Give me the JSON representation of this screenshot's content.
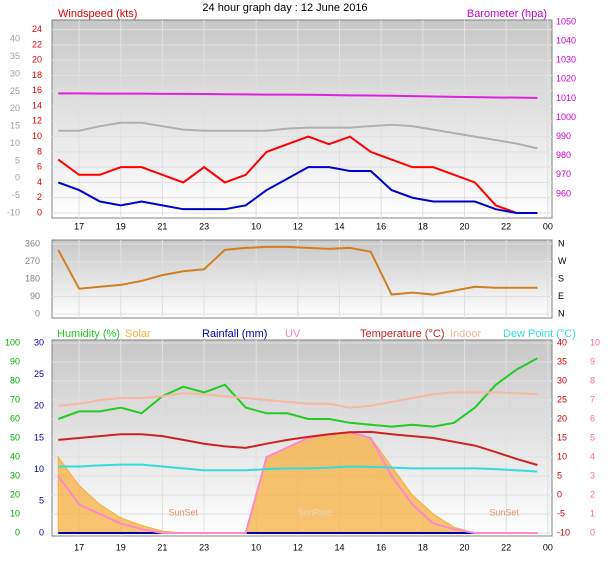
{
  "chart_data": [
    {
      "type": "line",
      "title": "24 hour graph day : 12 June 2016",
      "ylabel": "Windspeed (kts)",
      "y2label": "Barometer (hpa)",
      "x": [
        16,
        17,
        18,
        19,
        20,
        21,
        22,
        23,
        24,
        25,
        26,
        27,
        28,
        29,
        30,
        31,
        32,
        33,
        34,
        35,
        36,
        37,
        38,
        39
      ],
      "xlim": [
        15.7,
        39.7
      ],
      "xticks": [
        17,
        19,
        21,
        23,
        {
          "value": 25.5,
          "label": "10"
        },
        {
          "value": 27.5,
          "label": "12"
        },
        {
          "value": 29.5,
          "label": "14"
        },
        {
          "value": 31.5,
          "label": "16"
        },
        {
          "value": 33.5,
          "label": "18"
        },
        {
          "value": 35.5,
          "label": "20"
        },
        {
          "value": 37.5,
          "label": "22"
        },
        {
          "value": 39.5,
          "label": "00"
        }
      ],
      "ylim": [
        0,
        25
      ],
      "yticks": [
        0,
        2,
        4,
        6,
        8,
        10,
        12,
        14,
        16,
        18,
        20,
        22,
        24
      ],
      "ycolor": "#e00000",
      "y2lim": [
        950,
        1050
      ],
      "y2ticks": [
        960,
        970,
        980,
        990,
        1000,
        1010,
        1020,
        1030,
        1040,
        1050
      ],
      "y2color": "#cc00cc",
      "y3lim": [
        -10,
        45
      ],
      "y3ticks": [
        -10,
        -5,
        0,
        5,
        10,
        15,
        20,
        25,
        30,
        35,
        40
      ],
      "y3color": "#a0a0a0",
      "grid": true,
      "series": [
        {
          "color": "#b0b0b0",
          "axis": "y3",
          "values": [
            13.7,
            13.7,
            15,
            16,
            16,
            15,
            14,
            13.7,
            13.7,
            13.7,
            13.7,
            14.3,
            14.6,
            14.6,
            14.6,
            15,
            15.4,
            15,
            14,
            13,
            12,
            11,
            10,
            8.6
          ]
        },
        {
          "color": "#dd22dd",
          "axis": "y2",
          "values": [
            1012.6,
            1012.6,
            1012.5,
            1012.5,
            1012.5,
            1012.4,
            1012.4,
            1012.3,
            1012.2,
            1012.1,
            1012,
            1012,
            1011.9,
            1011.8,
            1011.6,
            1011.5,
            1011.4,
            1011.2,
            1011,
            1010.8,
            1010.7,
            1010.5,
            1010.4,
            1010.3
          ]
        },
        {
          "color": "#ff0000",
          "axis": "y",
          "values": [
            7,
            5,
            5,
            6,
            6,
            5,
            4,
            6,
            4,
            5,
            8,
            9,
            10,
            9,
            10,
            8,
            7,
            6,
            6,
            5,
            4,
            1,
            0,
            0
          ]
        },
        {
          "color": "#0000cc",
          "axis": "y",
          "values": [
            4,
            3,
            1.5,
            1,
            1.5,
            1,
            0.5,
            0.5,
            0.5,
            1,
            3,
            4.5,
            6,
            6,
            5.5,
            5.5,
            3,
            2,
            1.5,
            1.5,
            1.5,
            0.5,
            0,
            0
          ]
        }
      ]
    },
    {
      "type": "line",
      "x": [
        16,
        17,
        18,
        19,
        20,
        21,
        22,
        23,
        24,
        25,
        26,
        27,
        28,
        29,
        30,
        31,
        32,
        33,
        34,
        35,
        36,
        37,
        38,
        39
      ],
      "xlim": [
        15.7,
        39.7
      ],
      "ylim": [
        0,
        360
      ],
      "yticks": [
        0,
        90,
        180,
        270,
        360
      ],
      "ycolor": "#808080",
      "y2lim": [
        0,
        360
      ],
      "y2ticks": [
        {
          "value": 0,
          "label": "N"
        },
        {
          "value": 90,
          "label": "E"
        },
        {
          "value": 180,
          "label": "S"
        },
        {
          "value": 270,
          "label": "W"
        },
        {
          "value": 360,
          "label": "N"
        }
      ],
      "y2color": "#000000",
      "grid": true,
      "series": [
        {
          "color": "#d08020",
          "axis": "y",
          "values": [
            330,
            130,
            140,
            150,
            170,
            200,
            220,
            230,
            330,
            340,
            345,
            345,
            340,
            335,
            340,
            320,
            100,
            110,
            100,
            120,
            140,
            135,
            135,
            135
          ]
        }
      ]
    },
    {
      "type": "line",
      "x": [
        16,
        17,
        18,
        19,
        20,
        21,
        22,
        23,
        24,
        25,
        26,
        27,
        28,
        29,
        30,
        31,
        32,
        33,
        34,
        35,
        36,
        37,
        38,
        39
      ],
      "xlim": [
        15.7,
        39.7
      ],
      "xticks": [
        17,
        19,
        21,
        23,
        {
          "value": 25.5,
          "label": "10"
        },
        {
          "value": 27.5,
          "label": "12"
        },
        {
          "value": 29.5,
          "label": "14"
        },
        {
          "value": 31.5,
          "label": "16"
        },
        {
          "value": 33.5,
          "label": "18"
        },
        {
          "value": 35.5,
          "label": "20"
        },
        {
          "value": 37.5,
          "label": "22"
        },
        {
          "value": 39.5,
          "label": "00"
        }
      ],
      "ylim": [
        0,
        100
      ],
      "yticks": [
        0,
        10,
        20,
        30,
        40,
        50,
        60,
        70,
        80,
        90,
        100
      ],
      "ycolor": "#00aa00",
      "y2lim": [
        0,
        30
      ],
      "y2ticks": [
        0,
        5,
        10,
        15,
        20,
        25,
        30
      ],
      "y2color": "#0000aa",
      "y3lim": [
        -10,
        40
      ],
      "y3ticks": [
        -10,
        -5,
        0,
        5,
        10,
        15,
        20,
        25,
        30,
        35,
        40
      ],
      "y3color": "#cc0000",
      "y4lim": [
        0,
        10
      ],
      "y4ticks": [
        0,
        1,
        2,
        3,
        4,
        5,
        6,
        7,
        8,
        9,
        10
      ],
      "y4color": "#ff66aa",
      "y5lim": [
        0,
        1000
      ],
      "grid": true,
      "annotations": [
        {
          "text": "SunSet",
          "x": 22
        },
        {
          "text": "SunRise",
          "x": 28.3
        },
        {
          "text": "SunSet",
          "x": 37.4
        }
      ],
      "series": [
        {
          "name": "Solar",
          "color": "#f5b040",
          "axis": "y5",
          "fill": true,
          "values": [
            400,
            250,
            150,
            80,
            40,
            10,
            0,
            0,
            0,
            0,
            400,
            450,
            500,
            520,
            530,
            500,
            350,
            200,
            100,
            30,
            0,
            0,
            0,
            0
          ]
        },
        {
          "name": "Humidity (%)",
          "color": "#22cc22",
          "axis": "y",
          "values": [
            60,
            64,
            64,
            66,
            63,
            72,
            77,
            74,
            78,
            66,
            63,
            63,
            60,
            60,
            58,
            57,
            56,
            57,
            56,
            58,
            66,
            78,
            86,
            92
          ]
        },
        {
          "name": "Rainfall (mm)",
          "color": "#0000aa",
          "axis": "y2",
          "values": [
            0,
            0,
            0,
            0,
            0,
            0,
            0,
            0,
            0,
            0,
            0,
            0,
            0,
            0,
            0,
            0,
            0,
            0,
            0,
            0,
            0,
            0,
            0,
            0
          ]
        },
        {
          "name": "UV",
          "color": "#ff88cc",
          "axis": "y4",
          "values": [
            3,
            1.5,
            1,
            0.5,
            0.2,
            0,
            0,
            0,
            0,
            0,
            4,
            4.5,
            5,
            5.2,
            5.3,
            5,
            3,
            1.5,
            0.5,
            0.2,
            0,
            0,
            0,
            0
          ]
        },
        {
          "name": "Temperature (°C)",
          "color": "#cc2222",
          "axis": "y3",
          "values": [
            14.5,
            15,
            15.5,
            16,
            16,
            15.5,
            14.5,
            13.5,
            12.8,
            12.4,
            13.5,
            14.5,
            15.3,
            16,
            16.5,
            16.6,
            16,
            15.5,
            15,
            14,
            13,
            11.3,
            9.5,
            7.9
          ]
        },
        {
          "name": "Indoor",
          "color": "#f5b8a0",
          "axis": "y3",
          "values": [
            23.5,
            24,
            25,
            25.5,
            25.5,
            26,
            26.8,
            26.5,
            26,
            25.5,
            25,
            24.5,
            24,
            24,
            23,
            23.5,
            24.5,
            25.5,
            26.5,
            27,
            27,
            27,
            26.8,
            26.5
          ]
        },
        {
          "name": "Dew Point (°C)",
          "color": "#33dddd",
          "axis": "y3",
          "values": [
            7.5,
            7.5,
            7.8,
            8,
            8,
            7.5,
            7,
            6.5,
            6.5,
            6.5,
            6.8,
            7,
            7,
            7.2,
            7.5,
            7.4,
            7.2,
            7,
            7,
            7,
            7,
            6.8,
            6.5,
            6.2
          ]
        }
      ]
    }
  ]
}
